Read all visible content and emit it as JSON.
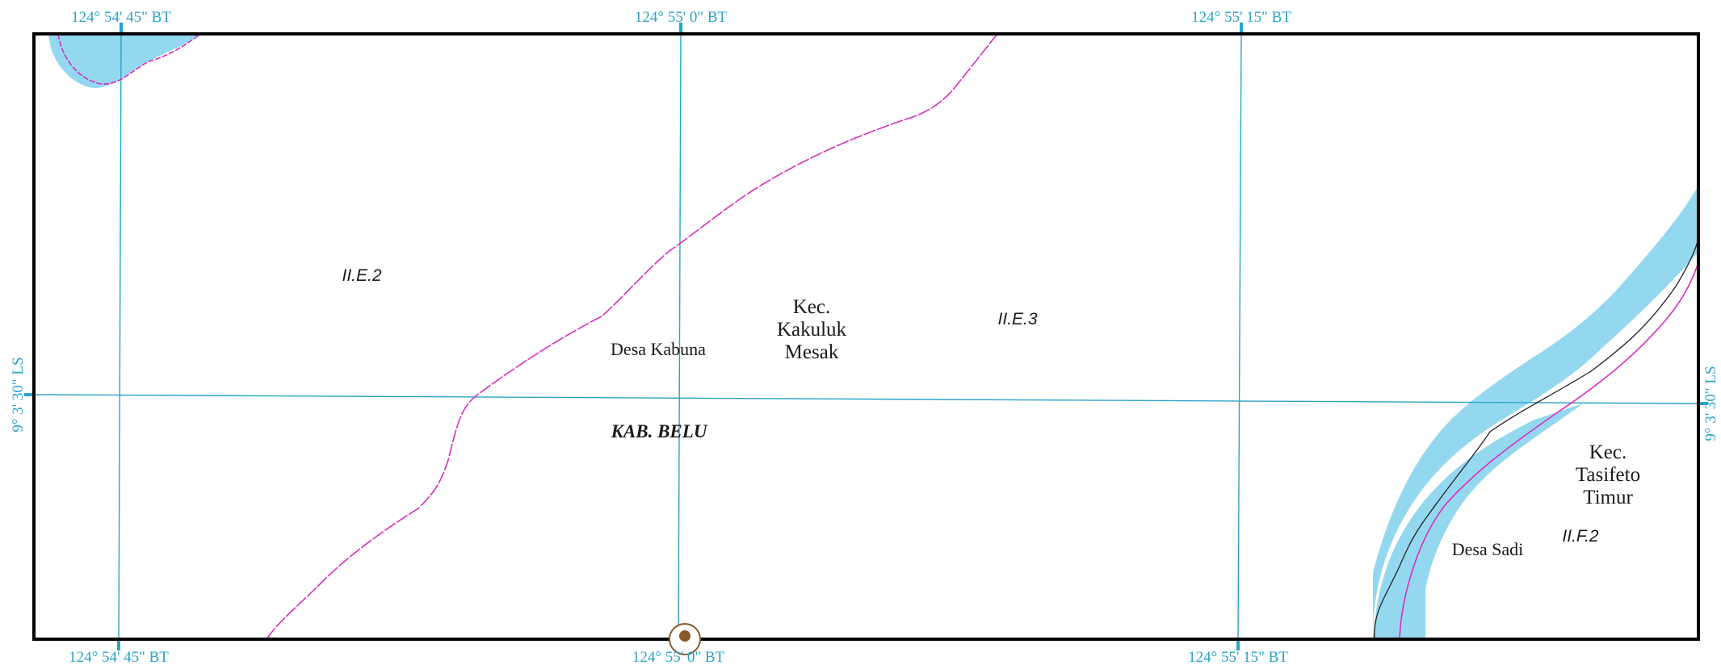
{
  "grid_labels": {
    "top": [
      "124° 54' 45\" BT",
      "124° 55' 0\" BT",
      "124° 55' 15\" BT"
    ],
    "bottom": [
      "124° 54' 45\" BT",
      "124° 55' 0\" BT",
      "124° 55' 15\" BT"
    ],
    "left": "9° 3' 30\" LS",
    "right": "9° 3' 30\" LS"
  },
  "sheet_codes": [
    "II.E.2",
    "II.E.3",
    "II.F.2"
  ],
  "villages": [
    "Desa Kabuna",
    "Desa Sadi"
  ],
  "districts": [
    {
      "lines": [
        "Kec.",
        "Kakuluk",
        "Mesak"
      ]
    },
    {
      "lines": [
        "Kec.",
        "Tasifeto",
        "Timur"
      ]
    }
  ],
  "regency": "KAB. BELU",
  "colors": {
    "grid": "#2aa3c9",
    "river": "#94d8ef",
    "boundary": "#d62fbf",
    "frame": "#000000",
    "text": "#1a1a1a"
  }
}
